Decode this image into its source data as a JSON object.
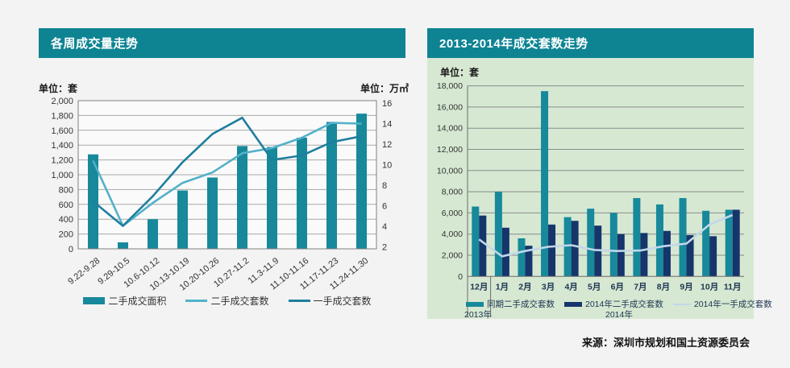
{
  "page": {
    "background": "#F3F3F3",
    "source_text": "来源：深圳市规划和国土资源委员会"
  },
  "colors": {
    "header_bg": "#0E8493",
    "teal_bar": "#17899B",
    "light_blue_line": "#52B1C9",
    "dark_teal_line": "#1E7E9E",
    "navy_bar": "#15356B",
    "pale_blue_line": "#C2D7E9",
    "green_panel_bg": "#D6E8D2",
    "plot_bg": "#FAFAFA",
    "plot_border": "#808080",
    "grid_line": "#A8A8A8",
    "grid_line_green": "#8A8A8A",
    "tick_text": "#333333",
    "navy_text": "#1E3450"
  },
  "chart_data": [
    {
      "type": "bar+line combo",
      "title": "各周成交量走势",
      "unit_left": "单位：套",
      "unit_right": "单位：万㎡",
      "categories": [
        "9.22-9.28",
        "9.29-10.5",
        "10.6-10.12",
        "10.13-10.19",
        "10.20-10.26",
        "10.27-11.2",
        "11.3-11.9",
        "11.10-11.16",
        "11.17-11.23",
        "11.24-11.30"
      ],
      "left_axis": {
        "min": 0,
        "max": 2000,
        "step": 200,
        "label": "套"
      },
      "right_axis": {
        "min": 0,
        "max": 16,
        "step": 2,
        "label": "万㎡"
      },
      "series": [
        {
          "name": "二手成交面积",
          "type": "bar",
          "axis": "right",
          "values": [
            10.2,
            0.7,
            3.2,
            6.3,
            7.7,
            11.1,
            11.0,
            12.0,
            13.7,
            14.6
          ]
        },
        {
          "name": "二手成交套数",
          "type": "line",
          "axis": "left",
          "values": [
            1190,
            310,
            620,
            890,
            1030,
            1290,
            1360,
            1500,
            1700,
            1690
          ]
        },
        {
          "name": "一手成交套数",
          "type": "line",
          "axis": "left",
          "values": [
            640,
            310,
            710,
            1170,
            1550,
            1770,
            1200,
            1260,
            1440,
            1520
          ]
        }
      ],
      "legend": [
        "二手成交面积",
        "二手成交套数",
        "一手成交套数"
      ]
    },
    {
      "type": "bar+line combo",
      "title": "2013-2014年成交套数走势",
      "unit": "单位：套",
      "categories": [
        "12月",
        "1月",
        "2月",
        "3月",
        "4月",
        "5月",
        "6月",
        "7月",
        "8月",
        "9月",
        "10月",
        "11月"
      ],
      "y_axis": {
        "min": 0,
        "max": 18000,
        "step": 2000,
        "label": "套"
      },
      "series": [
        {
          "name": "同期二手成交套数",
          "type": "bar",
          "values": [
            6600,
            8000,
            3600,
            17500,
            5600,
            6400,
            6000,
            7400,
            6800,
            7400,
            6200,
            6300
          ]
        },
        {
          "name": "2014年二手成交套数",
          "type": "bar",
          "values": [
            5750,
            4600,
            2900,
            4900,
            5250,
            4800,
            4000,
            4100,
            4300,
            3900,
            3800,
            6300
          ]
        },
        {
          "name": "2014年一手成交套数",
          "type": "line",
          "values": [
            3500,
            1900,
            2400,
            2800,
            2950,
            2500,
            2400,
            2450,
            2850,
            3100,
            4900,
            5800
          ]
        }
      ],
      "legend": [
        "同期二手成交套数",
        "2014年二手成交套数",
        "2014年一手成交套数"
      ],
      "year_labels": [
        "2013年",
        "2014年"
      ]
    }
  ]
}
